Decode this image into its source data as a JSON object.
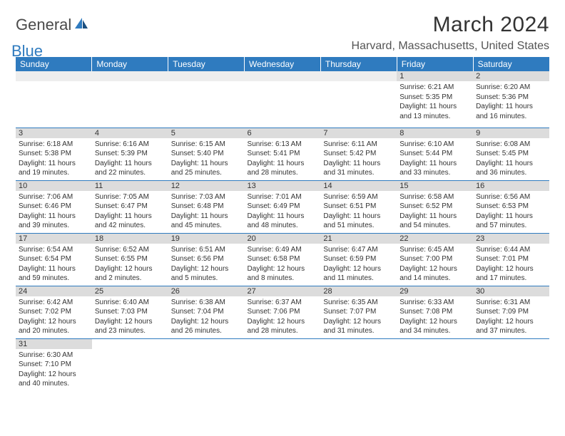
{
  "logo": {
    "text1": "General",
    "text2": "Blue"
  },
  "title": "March 2024",
  "location": "Harvard, Massachusetts, United States",
  "colors": {
    "header_bg": "#2f7bbf",
    "header_text": "#ffffff",
    "daynum_bg": "#dcdcdc",
    "border": "#2f7bbf",
    "logo_gray": "#4a4a4a",
    "logo_blue": "#2f7bbf"
  },
  "weekdays": [
    "Sunday",
    "Monday",
    "Tuesday",
    "Wednesday",
    "Thursday",
    "Friday",
    "Saturday"
  ],
  "weeks": [
    [
      {
        "day": "",
        "lines": []
      },
      {
        "day": "",
        "lines": []
      },
      {
        "day": "",
        "lines": []
      },
      {
        "day": "",
        "lines": []
      },
      {
        "day": "",
        "lines": []
      },
      {
        "day": "1",
        "lines": [
          "Sunrise: 6:21 AM",
          "Sunset: 5:35 PM",
          "Daylight: 11 hours",
          "and 13 minutes."
        ]
      },
      {
        "day": "2",
        "lines": [
          "Sunrise: 6:20 AM",
          "Sunset: 5:36 PM",
          "Daylight: 11 hours",
          "and 16 minutes."
        ]
      }
    ],
    [
      {
        "day": "3",
        "lines": [
          "Sunrise: 6:18 AM",
          "Sunset: 5:38 PM",
          "Daylight: 11 hours",
          "and 19 minutes."
        ]
      },
      {
        "day": "4",
        "lines": [
          "Sunrise: 6:16 AM",
          "Sunset: 5:39 PM",
          "Daylight: 11 hours",
          "and 22 minutes."
        ]
      },
      {
        "day": "5",
        "lines": [
          "Sunrise: 6:15 AM",
          "Sunset: 5:40 PM",
          "Daylight: 11 hours",
          "and 25 minutes."
        ]
      },
      {
        "day": "6",
        "lines": [
          "Sunrise: 6:13 AM",
          "Sunset: 5:41 PM",
          "Daylight: 11 hours",
          "and 28 minutes."
        ]
      },
      {
        "day": "7",
        "lines": [
          "Sunrise: 6:11 AM",
          "Sunset: 5:42 PM",
          "Daylight: 11 hours",
          "and 31 minutes."
        ]
      },
      {
        "day": "8",
        "lines": [
          "Sunrise: 6:10 AM",
          "Sunset: 5:44 PM",
          "Daylight: 11 hours",
          "and 33 minutes."
        ]
      },
      {
        "day": "9",
        "lines": [
          "Sunrise: 6:08 AM",
          "Sunset: 5:45 PM",
          "Daylight: 11 hours",
          "and 36 minutes."
        ]
      }
    ],
    [
      {
        "day": "10",
        "lines": [
          "Sunrise: 7:06 AM",
          "Sunset: 6:46 PM",
          "Daylight: 11 hours",
          "and 39 minutes."
        ]
      },
      {
        "day": "11",
        "lines": [
          "Sunrise: 7:05 AM",
          "Sunset: 6:47 PM",
          "Daylight: 11 hours",
          "and 42 minutes."
        ]
      },
      {
        "day": "12",
        "lines": [
          "Sunrise: 7:03 AM",
          "Sunset: 6:48 PM",
          "Daylight: 11 hours",
          "and 45 minutes."
        ]
      },
      {
        "day": "13",
        "lines": [
          "Sunrise: 7:01 AM",
          "Sunset: 6:49 PM",
          "Daylight: 11 hours",
          "and 48 minutes."
        ]
      },
      {
        "day": "14",
        "lines": [
          "Sunrise: 6:59 AM",
          "Sunset: 6:51 PM",
          "Daylight: 11 hours",
          "and 51 minutes."
        ]
      },
      {
        "day": "15",
        "lines": [
          "Sunrise: 6:58 AM",
          "Sunset: 6:52 PM",
          "Daylight: 11 hours",
          "and 54 minutes."
        ]
      },
      {
        "day": "16",
        "lines": [
          "Sunrise: 6:56 AM",
          "Sunset: 6:53 PM",
          "Daylight: 11 hours",
          "and 57 minutes."
        ]
      }
    ],
    [
      {
        "day": "17",
        "lines": [
          "Sunrise: 6:54 AM",
          "Sunset: 6:54 PM",
          "Daylight: 11 hours",
          "and 59 minutes."
        ]
      },
      {
        "day": "18",
        "lines": [
          "Sunrise: 6:52 AM",
          "Sunset: 6:55 PM",
          "Daylight: 12 hours",
          "and 2 minutes."
        ]
      },
      {
        "day": "19",
        "lines": [
          "Sunrise: 6:51 AM",
          "Sunset: 6:56 PM",
          "Daylight: 12 hours",
          "and 5 minutes."
        ]
      },
      {
        "day": "20",
        "lines": [
          "Sunrise: 6:49 AM",
          "Sunset: 6:58 PM",
          "Daylight: 12 hours",
          "and 8 minutes."
        ]
      },
      {
        "day": "21",
        "lines": [
          "Sunrise: 6:47 AM",
          "Sunset: 6:59 PM",
          "Daylight: 12 hours",
          "and 11 minutes."
        ]
      },
      {
        "day": "22",
        "lines": [
          "Sunrise: 6:45 AM",
          "Sunset: 7:00 PM",
          "Daylight: 12 hours",
          "and 14 minutes."
        ]
      },
      {
        "day": "23",
        "lines": [
          "Sunrise: 6:44 AM",
          "Sunset: 7:01 PM",
          "Daylight: 12 hours",
          "and 17 minutes."
        ]
      }
    ],
    [
      {
        "day": "24",
        "lines": [
          "Sunrise: 6:42 AM",
          "Sunset: 7:02 PM",
          "Daylight: 12 hours",
          "and 20 minutes."
        ]
      },
      {
        "day": "25",
        "lines": [
          "Sunrise: 6:40 AM",
          "Sunset: 7:03 PM",
          "Daylight: 12 hours",
          "and 23 minutes."
        ]
      },
      {
        "day": "26",
        "lines": [
          "Sunrise: 6:38 AM",
          "Sunset: 7:04 PM",
          "Daylight: 12 hours",
          "and 26 minutes."
        ]
      },
      {
        "day": "27",
        "lines": [
          "Sunrise: 6:37 AM",
          "Sunset: 7:06 PM",
          "Daylight: 12 hours",
          "and 28 minutes."
        ]
      },
      {
        "day": "28",
        "lines": [
          "Sunrise: 6:35 AM",
          "Sunset: 7:07 PM",
          "Daylight: 12 hours",
          "and 31 minutes."
        ]
      },
      {
        "day": "29",
        "lines": [
          "Sunrise: 6:33 AM",
          "Sunset: 7:08 PM",
          "Daylight: 12 hours",
          "and 34 minutes."
        ]
      },
      {
        "day": "30",
        "lines": [
          "Sunrise: 6:31 AM",
          "Sunset: 7:09 PM",
          "Daylight: 12 hours",
          "and 37 minutes."
        ]
      }
    ],
    [
      {
        "day": "31",
        "lines": [
          "Sunrise: 6:30 AM",
          "Sunset: 7:10 PM",
          "Daylight: 12 hours",
          "and 40 minutes."
        ]
      },
      {
        "day": "",
        "lines": []
      },
      {
        "day": "",
        "lines": []
      },
      {
        "day": "",
        "lines": []
      },
      {
        "day": "",
        "lines": []
      },
      {
        "day": "",
        "lines": []
      },
      {
        "day": "",
        "lines": []
      }
    ]
  ]
}
